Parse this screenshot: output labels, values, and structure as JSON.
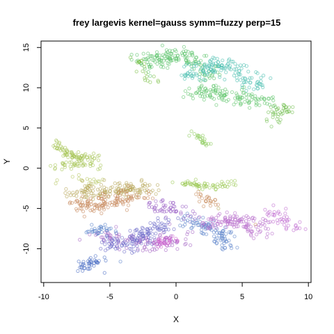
{
  "chart_data": {
    "type": "scatter",
    "title": "frey largevis kernel=gauss symm=fuzzy perp=15",
    "xlabel": "X",
    "ylabel": "Y",
    "xlim": [
      -10.2,
      10.2
    ],
    "ylim": [
      -14.2,
      15.8
    ],
    "xticks": [
      -10,
      -5,
      0,
      5,
      10
    ],
    "yticks": [
      -10,
      -5,
      0,
      5,
      10,
      15
    ],
    "grid": false,
    "legend": "none",
    "marker": "open-circle",
    "clusters": [
      {
        "color": "#5cc36a",
        "n": 150,
        "seed": 11,
        "spread": [
          0.45,
          0.55
        ],
        "path": [
          [
            -2.8,
            13.6
          ],
          [
            -1.4,
            13.0
          ],
          [
            -0.5,
            14.0
          ],
          [
            0.4,
            14.2
          ],
          [
            1.2,
            13.4
          ],
          [
            2.0,
            12.3
          ],
          [
            3.0,
            11.8
          ]
        ]
      },
      {
        "color": "#4cc0b0",
        "n": 150,
        "seed": 12,
        "spread": [
          0.5,
          0.55
        ],
        "path": [
          [
            1.0,
            11.6
          ],
          [
            2.4,
            12.6
          ],
          [
            3.6,
            12.8
          ],
          [
            4.6,
            12.1
          ],
          [
            5.6,
            11.0
          ],
          [
            6.2,
            10.5
          ]
        ]
      },
      {
        "color": "#62c66e",
        "n": 130,
        "seed": 13,
        "spread": [
          0.55,
          0.5
        ],
        "path": [
          [
            1.4,
            9.2
          ],
          [
            2.6,
            9.8
          ],
          [
            3.6,
            9.0
          ],
          [
            4.8,
            8.8
          ],
          [
            6.0,
            8.6
          ],
          [
            7.0,
            8.2
          ]
        ]
      },
      {
        "color": "#78c257",
        "n": 40,
        "seed": 14,
        "spread": [
          0.3,
          0.4
        ],
        "path": [
          [
            7.3,
            5.8
          ],
          [
            7.6,
            6.8
          ],
          [
            8.0,
            7.4
          ],
          [
            8.6,
            7.8
          ]
        ]
      },
      {
        "color": "#7fc24a",
        "n": 20,
        "seed": 15,
        "spread": [
          0.15,
          0.25
        ],
        "path": [
          [
            -3.2,
            13.9
          ],
          [
            -2.8,
            13.3
          ],
          [
            -2.3,
            11.3
          ],
          [
            -1.2,
            10.6
          ]
        ]
      },
      {
        "color": "#8ccc5c",
        "n": 22,
        "seed": 16,
        "spread": [
          0.2,
          0.18
        ],
        "path": [
          [
            1.2,
            4.3
          ],
          [
            1.8,
            4.0
          ],
          [
            2.3,
            3.2
          ],
          [
            2.3,
            2.8
          ]
        ]
      },
      {
        "color": "#a6c457",
        "n": 70,
        "seed": 21,
        "spread": [
          0.22,
          0.3
        ],
        "path": [
          [
            -9.4,
            2.6
          ],
          [
            -8.6,
            2.7
          ],
          [
            -8.0,
            1.6
          ],
          [
            -7.0,
            1.4
          ],
          [
            -5.8,
            1.3
          ]
        ]
      },
      {
        "color": "#a9c75a",
        "n": 45,
        "seed": 22,
        "spread": [
          0.3,
          0.32
        ],
        "path": [
          [
            -9.0,
            0.0
          ],
          [
            -7.6,
            0.6
          ],
          [
            -6.4,
            0.9
          ],
          [
            -6.0,
            0.2
          ]
        ]
      },
      {
        "color": "#b8c864",
        "n": 18,
        "seed": 23,
        "spread": [
          0.3,
          0.3
        ],
        "path": [
          [
            -8.8,
            -1.3
          ],
          [
            -7.6,
            -1.2
          ],
          [
            -5.8,
            -1.6
          ]
        ]
      },
      {
        "color": "#9cca56",
        "n": 60,
        "seed": 24,
        "spread": [
          0.4,
          0.22
        ],
        "path": [
          [
            0.6,
            -1.8
          ],
          [
            1.8,
            -2.1
          ],
          [
            3.0,
            -2.3
          ],
          [
            4.2,
            -1.9
          ],
          [
            4.8,
            -1.5
          ]
        ]
      },
      {
        "color": "#b8a65a",
        "n": 140,
        "seed": 31,
        "spread": [
          0.55,
          0.5
        ],
        "path": [
          [
            -7.8,
            -3.0
          ],
          [
            -6.5,
            -2.8
          ],
          [
            -5.2,
            -2.6
          ],
          [
            -4.0,
            -2.6
          ],
          [
            -2.6,
            -2.4
          ],
          [
            -2.0,
            -2.9
          ]
        ]
      },
      {
        "color": "#c7875a",
        "n": 120,
        "seed": 32,
        "spread": [
          0.55,
          0.5
        ],
        "path": [
          [
            -7.6,
            -4.4
          ],
          [
            -6.2,
            -4.6
          ],
          [
            -5.0,
            -4.3
          ],
          [
            -3.8,
            -3.8
          ],
          [
            -2.4,
            -3.5
          ]
        ]
      },
      {
        "color": "#ca9060",
        "n": 24,
        "seed": 33,
        "spread": [
          0.3,
          0.35
        ],
        "path": [
          [
            1.2,
            -3.1
          ],
          [
            2.1,
            -3.6
          ],
          [
            2.9,
            -4.6
          ]
        ]
      },
      {
        "color": "#a565c4",
        "n": 110,
        "seed": 41,
        "spread": [
          0.5,
          0.55
        ],
        "path": [
          [
            -6.3,
            -8.2
          ],
          [
            -5.0,
            -8.6
          ],
          [
            -3.7,
            -8.8
          ],
          [
            -2.3,
            -9.2
          ],
          [
            -1.0,
            -9.4
          ],
          [
            0.6,
            -8.4
          ]
        ]
      },
      {
        "color": "#6e6cc9",
        "n": 130,
        "seed": 42,
        "spread": [
          0.5,
          0.5
        ],
        "path": [
          [
            -5.4,
            -9.4
          ],
          [
            -4.4,
            -9.6
          ],
          [
            -3.4,
            -9.4
          ],
          [
            -2.4,
            -8.2
          ],
          [
            -1.6,
            -7.4
          ],
          [
            -0.6,
            -7.0
          ]
        ]
      },
      {
        "color": "#5f86cc",
        "n": 100,
        "seed": 43,
        "spread": [
          0.45,
          0.5
        ],
        "path": [
          [
            0.4,
            -6.6
          ],
          [
            1.6,
            -6.8
          ],
          [
            2.6,
            -7.4
          ],
          [
            3.4,
            -8.6
          ],
          [
            3.8,
            -9.8
          ]
        ]
      },
      {
        "color": "#b76ccb",
        "n": 120,
        "seed": 44,
        "spread": [
          0.5,
          0.5
        ],
        "path": [
          [
            2.4,
            -6.6
          ],
          [
            3.6,
            -6.8
          ],
          [
            4.8,
            -6.6
          ],
          [
            5.8,
            -7.2
          ],
          [
            6.6,
            -7.6
          ]
        ]
      },
      {
        "color": "#bf6bd0",
        "n": 40,
        "seed": 45,
        "spread": [
          0.35,
          0.35
        ],
        "path": [
          [
            7.2,
            -5.2
          ],
          [
            8.0,
            -6.4
          ],
          [
            8.8,
            -7.0
          ],
          [
            9.3,
            -7.2
          ]
        ]
      },
      {
        "color": "#9b63c7",
        "n": 50,
        "seed": 46,
        "spread": [
          0.45,
          0.4
        ],
        "path": [
          [
            -2.0,
            -4.2
          ],
          [
            -1.2,
            -4.9
          ],
          [
            0.2,
            -5.2
          ],
          [
            1.0,
            -5.6
          ]
        ]
      },
      {
        "color": "#4d6fc4",
        "n": 40,
        "seed": 47,
        "spread": [
          0.28,
          0.3
        ],
        "path": [
          [
            -7.2,
            -12.4
          ],
          [
            -6.4,
            -11.8
          ],
          [
            -5.8,
            -11.4
          ]
        ]
      },
      {
        "color": "#5580c9",
        "n": 30,
        "seed": 48,
        "spread": [
          0.3,
          0.3
        ],
        "path": [
          [
            -6.6,
            -7.8
          ],
          [
            -5.8,
            -7.6
          ],
          [
            -5.0,
            -7.8
          ]
        ]
      },
      {
        "color": "#cf62cf",
        "n": 30,
        "seed": 49,
        "spread": [
          0.3,
          0.25
        ],
        "path": [
          [
            -1.8,
            -9.4
          ],
          [
            -1.0,
            -9.2
          ],
          [
            -0.2,
            -8.8
          ]
        ]
      }
    ],
    "outliers": [
      {
        "x": -5.4,
        "y": -13.0,
        "color": "#4d6fc4"
      },
      {
        "x": -4.2,
        "y": -11.6,
        "color": "#5f86cc"
      },
      {
        "x": -1.4,
        "y": -9.4,
        "color": "#cf62cf"
      },
      {
        "x": 6.0,
        "y": -7.0,
        "color": "#c7875a"
      },
      {
        "x": 3.2,
        "y": -5.0,
        "color": "#b8a65a"
      },
      {
        "x": 2.2,
        "y": 3.0,
        "color": "#8ccc5c"
      },
      {
        "x": -3.6,
        "y": -4.6,
        "color": "#ca9060"
      },
      {
        "x": -7.1,
        "y": 1.5,
        "color": "#a6c457"
      }
    ]
  }
}
